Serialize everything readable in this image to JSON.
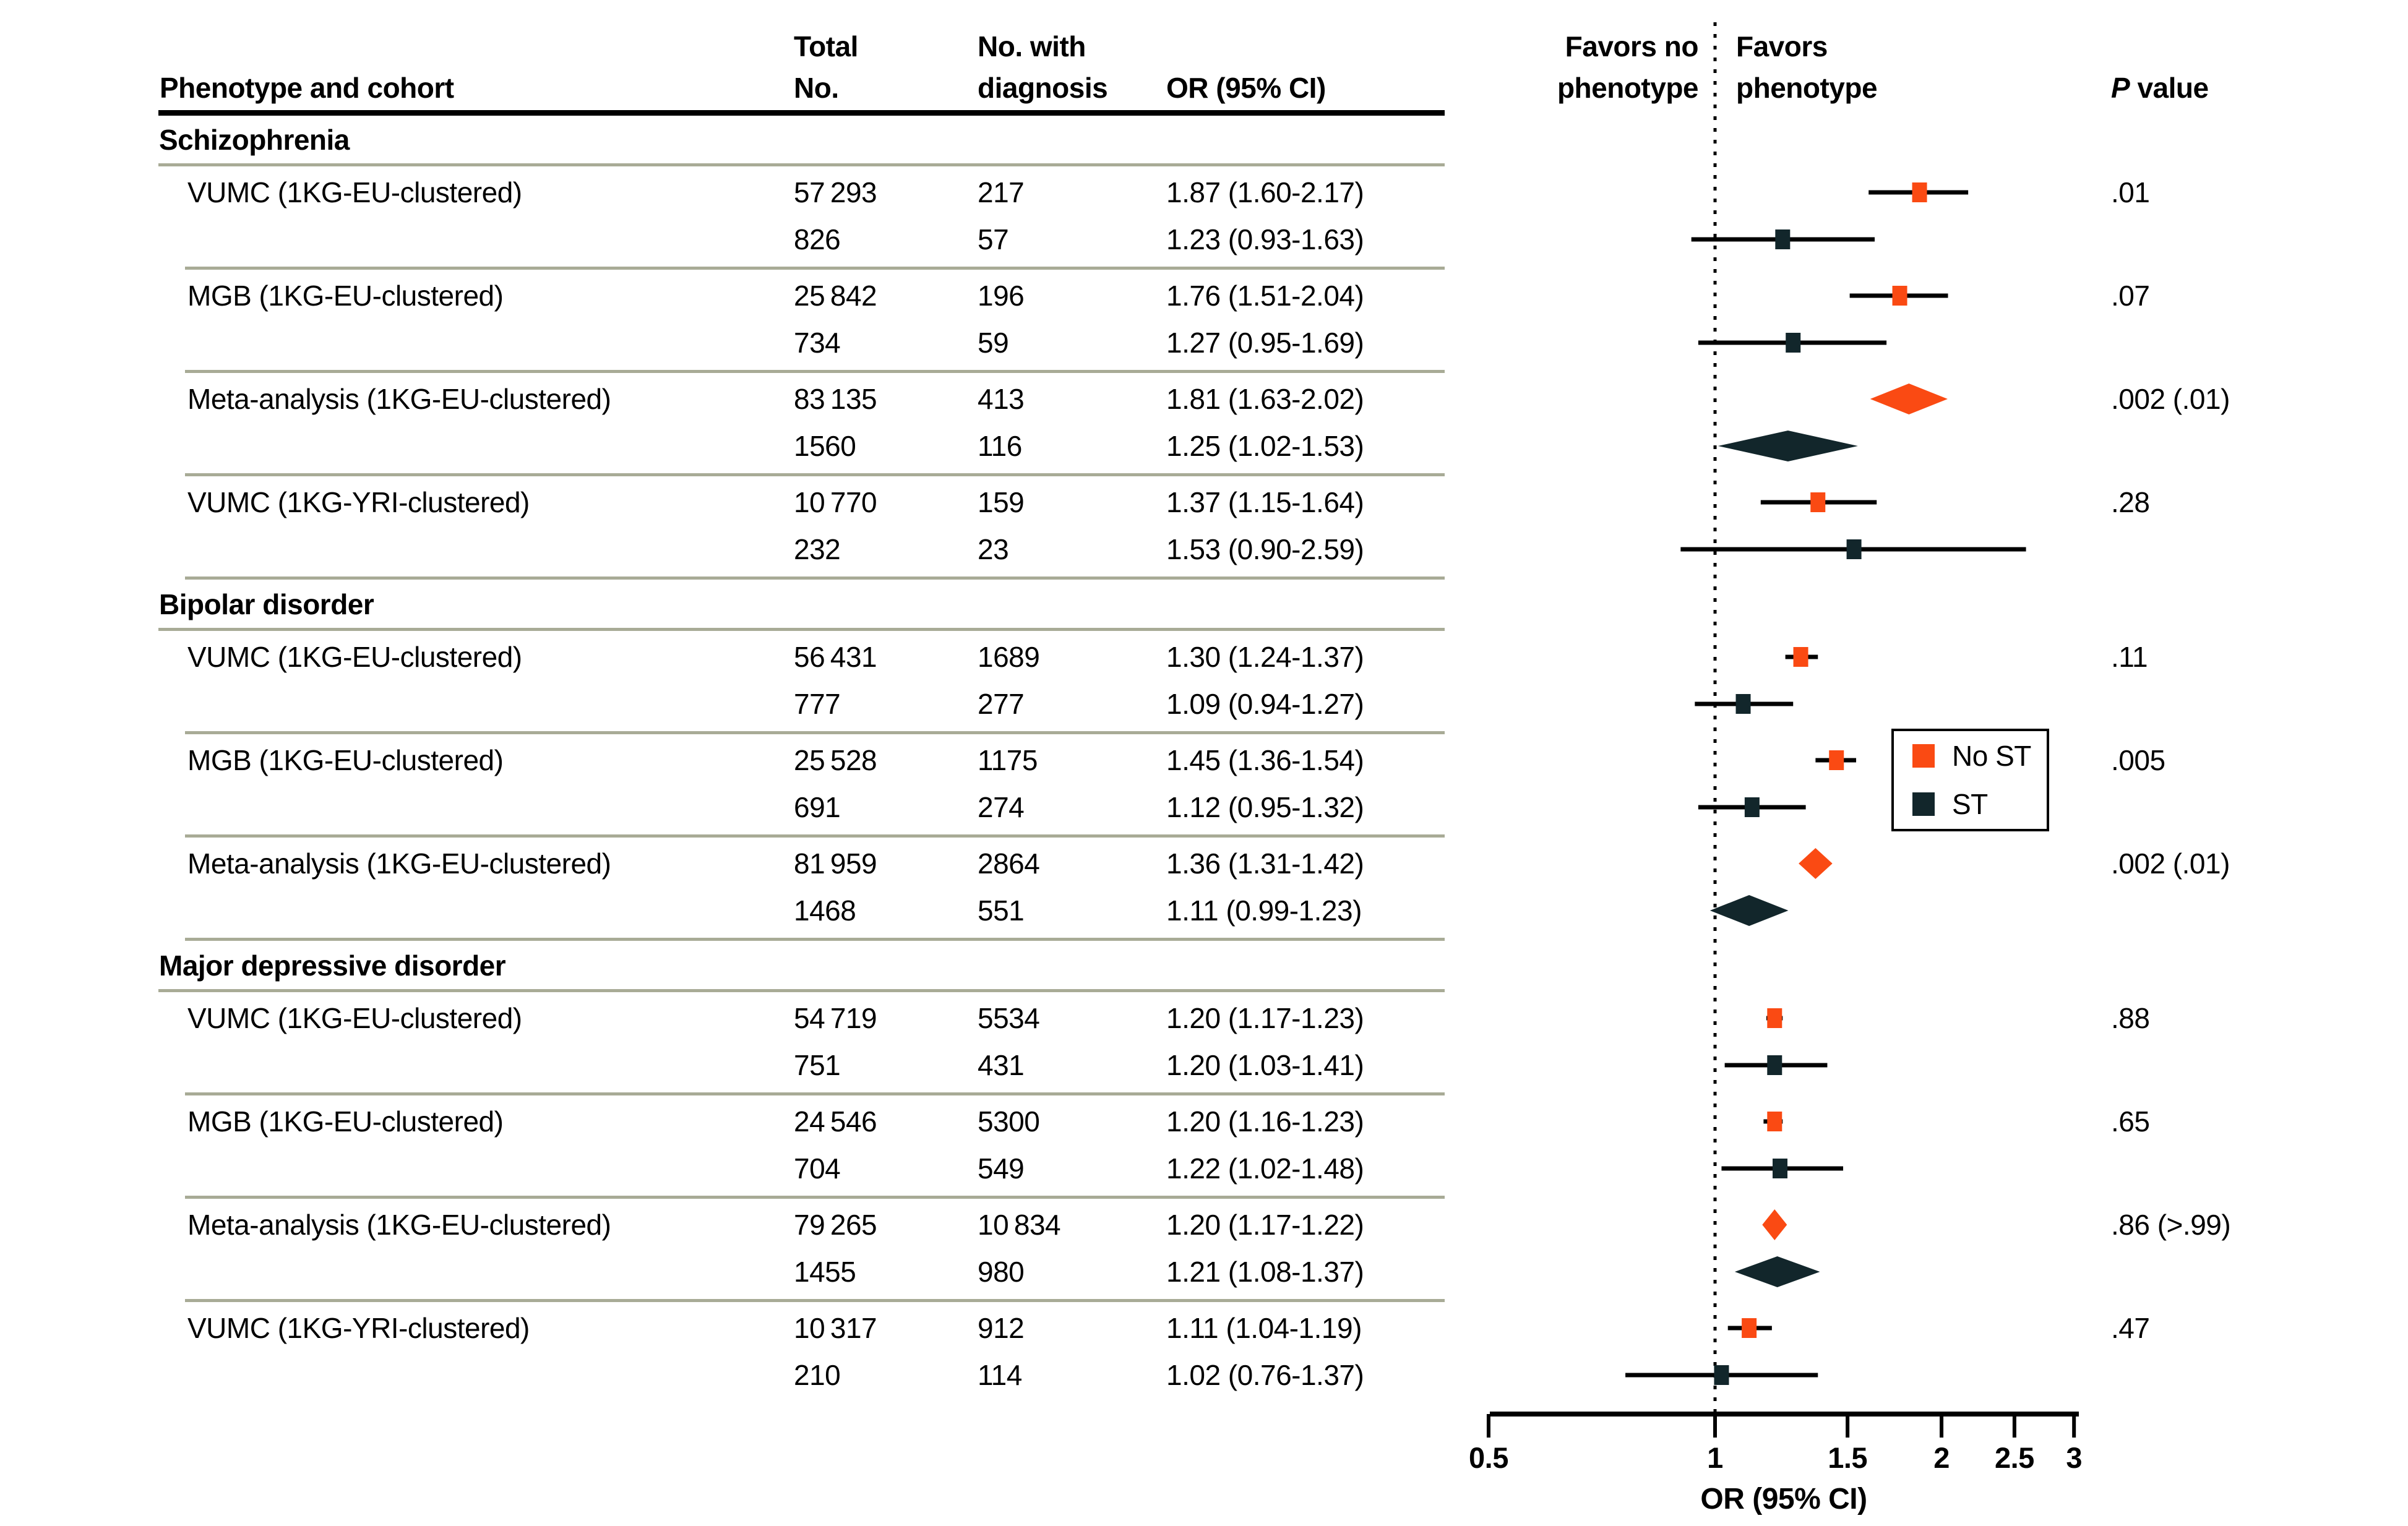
{
  "figure": {
    "col_headers": {
      "phenotype": "Phenotype and cohort",
      "total_1": "Total",
      "total_2": "No.",
      "diag_1": "No. with",
      "diag_2": "diagnosis",
      "or": "OR (95% CI)"
    },
    "favors_left_1": "Favors no",
    "favors_left_2": "phenotype",
    "favors_right_1": "Favors",
    "favors_right_2": "phenotype",
    "p_header_italic": "P",
    "p_header_rest": " value",
    "axis_label": "OR (95% CI)",
    "legend_no_st": "No ST",
    "legend_st": "ST",
    "colors": {
      "no_st": "#FA4A13",
      "st": "#12262B",
      "separator": "#A8AB96",
      "ci_line": "#000000"
    }
  },
  "chart_data": {
    "type": "forest",
    "x_axis": {
      "label": "OR (95% CI)",
      "scale": "log",
      "ticks": [
        0.5,
        1,
        1.5,
        2,
        2.5,
        3
      ],
      "range": [
        0.5,
        3
      ],
      "reference_line": 1
    },
    "series_legend": [
      "No ST",
      "ST"
    ],
    "sections": [
      {
        "phenotype": "Schizophrenia",
        "cohorts": [
          {
            "name": "VUMC (1KG-EU-clustered)",
            "p_value": ".01",
            "rows": [
              {
                "series": "No ST",
                "total": "57 293",
                "n_diagnosis": "217",
                "or_ci": "1.87 (1.60-2.17)",
                "or": 1.87,
                "ci_low": 1.6,
                "ci_high": 2.17,
                "marker": "square"
              },
              {
                "series": "ST",
                "total": "826",
                "n_diagnosis": "57",
                "or_ci": "1.23 (0.93-1.63)",
                "or": 1.23,
                "ci_low": 0.93,
                "ci_high": 1.63,
                "marker": "square"
              }
            ]
          },
          {
            "name": "MGB (1KG-EU-clustered)",
            "p_value": ".07",
            "rows": [
              {
                "series": "No ST",
                "total": "25 842",
                "n_diagnosis": "196",
                "or_ci": "1.76 (1.51-2.04)",
                "or": 1.76,
                "ci_low": 1.51,
                "ci_high": 2.04,
                "marker": "square"
              },
              {
                "series": "ST",
                "total": "734",
                "n_diagnosis": "59",
                "or_ci": "1.27 (0.95-1.69)",
                "or": 1.27,
                "ci_low": 0.95,
                "ci_high": 1.69,
                "marker": "square"
              }
            ]
          },
          {
            "name": "Meta-analysis (1KG-EU-clustered)",
            "p_value": ".002 (.01)",
            "rows": [
              {
                "series": "No ST",
                "total": "83 135",
                "n_diagnosis": "413",
                "or_ci": "1.81 (1.63-2.02)",
                "or": 1.81,
                "ci_low": 1.63,
                "ci_high": 2.02,
                "marker": "diamond"
              },
              {
                "series": "ST",
                "total": "1560",
                "n_diagnosis": "116",
                "or_ci": "1.25 (1.02-1.53)",
                "or": 1.25,
                "ci_low": 1.02,
                "ci_high": 1.53,
                "marker": "diamond"
              }
            ]
          },
          {
            "name": "VUMC (1KG-YRI-clustered)",
            "p_value": ".28",
            "rows": [
              {
                "series": "No ST",
                "total": "10 770",
                "n_diagnosis": "159",
                "or_ci": "1.37 (1.15-1.64)",
                "or": 1.37,
                "ci_low": 1.15,
                "ci_high": 1.64,
                "marker": "square"
              },
              {
                "series": "ST",
                "total": "232",
                "n_diagnosis": "23",
                "or_ci": "1.53 (0.90-2.59)",
                "or": 1.53,
                "ci_low": 0.9,
                "ci_high": 2.59,
                "marker": "square"
              }
            ]
          }
        ]
      },
      {
        "phenotype": "Bipolar disorder",
        "cohorts": [
          {
            "name": "VUMC (1KG-EU-clustered)",
            "p_value": ".11",
            "rows": [
              {
                "series": "No ST",
                "total": "56 431",
                "n_diagnosis": "1689",
                "or_ci": "1.30 (1.24-1.37)",
                "or": 1.3,
                "ci_low": 1.24,
                "ci_high": 1.37,
                "marker": "square"
              },
              {
                "series": "ST",
                "total": "777",
                "n_diagnosis": "277",
                "or_ci": "1.09 (0.94-1.27)",
                "or": 1.09,
                "ci_low": 0.94,
                "ci_high": 1.27,
                "marker": "square"
              }
            ]
          },
          {
            "name": "MGB (1KG-EU-clustered)",
            "p_value": ".005",
            "rows": [
              {
                "series": "No ST",
                "total": "25 528",
                "n_diagnosis": "1175",
                "or_ci": "1.45 (1.36-1.54)",
                "or": 1.45,
                "ci_low": 1.36,
                "ci_high": 1.54,
                "marker": "square"
              },
              {
                "series": "ST",
                "total": "691",
                "n_diagnosis": "274",
                "or_ci": "1.12 (0.95-1.32)",
                "or": 1.12,
                "ci_low": 0.95,
                "ci_high": 1.32,
                "marker": "square"
              }
            ]
          },
          {
            "name": "Meta-analysis (1KG-EU-clustered)",
            "p_value": ".002 (.01)",
            "rows": [
              {
                "series": "No ST",
                "total": "81 959",
                "n_diagnosis": "2864",
                "or_ci": "1.36 (1.31-1.42)",
                "or": 1.36,
                "ci_low": 1.31,
                "ci_high": 1.42,
                "marker": "diamond"
              },
              {
                "series": "ST",
                "total": "1468",
                "n_diagnosis": "551",
                "or_ci": "1.11 (0.99-1.23)",
                "or": 1.11,
                "ci_low": 0.99,
                "ci_high": 1.23,
                "marker": "diamond"
              }
            ]
          }
        ]
      },
      {
        "phenotype": "Major depressive disorder",
        "cohorts": [
          {
            "name": "VUMC (1KG-EU-clustered)",
            "p_value": ".88",
            "rows": [
              {
                "series": "No ST",
                "total": "54 719",
                "n_diagnosis": "5534",
                "or_ci": "1.20 (1.17-1.23)",
                "or": 1.2,
                "ci_low": 1.17,
                "ci_high": 1.23,
                "marker": "square"
              },
              {
                "series": "ST",
                "total": "751",
                "n_diagnosis": "431",
                "or_ci": "1.20 (1.03-1.41)",
                "or": 1.2,
                "ci_low": 1.03,
                "ci_high": 1.41,
                "marker": "square"
              }
            ]
          },
          {
            "name": "MGB (1KG-EU-clustered)",
            "p_value": ".65",
            "rows": [
              {
                "series": "No ST",
                "total": "24 546",
                "n_diagnosis": "5300",
                "or_ci": "1.20 (1.16-1.23)",
                "or": 1.2,
                "ci_low": 1.16,
                "ci_high": 1.23,
                "marker": "square"
              },
              {
                "series": "ST",
                "total": "704",
                "n_diagnosis": "549",
                "or_ci": "1.22 (1.02-1.48)",
                "or": 1.22,
                "ci_low": 1.02,
                "ci_high": 1.48,
                "marker": "square"
              }
            ]
          },
          {
            "name": "Meta-analysis (1KG-EU-clustered)",
            "p_value": ".86 (>.99)",
            "rows": [
              {
                "series": "No ST",
                "total": "79 265",
                "n_diagnosis": "10 834",
                "or_ci": "1.20 (1.17-1.22)",
                "or": 1.2,
                "ci_low": 1.17,
                "ci_high": 1.22,
                "marker": "diamond"
              },
              {
                "series": "ST",
                "total": "1455",
                "n_diagnosis": "980",
                "or_ci": "1.21 (1.08-1.37)",
                "or": 1.21,
                "ci_low": 1.08,
                "ci_high": 1.37,
                "marker": "diamond"
              }
            ]
          },
          {
            "name": "VUMC (1KG-YRI-clustered)",
            "p_value": ".47",
            "rows": [
              {
                "series": "No ST",
                "total": "10 317",
                "n_diagnosis": "912",
                "or_ci": "1.11 (1.04-1.19)",
                "or": 1.11,
                "ci_low": 1.04,
                "ci_high": 1.19,
                "marker": "square"
              },
              {
                "series": "ST",
                "total": "210",
                "n_diagnosis": "114",
                "or_ci": "1.02 (0.76-1.37)",
                "or": 1.02,
                "ci_low": 0.76,
                "ci_high": 1.37,
                "marker": "square"
              }
            ]
          }
        ]
      }
    ]
  }
}
